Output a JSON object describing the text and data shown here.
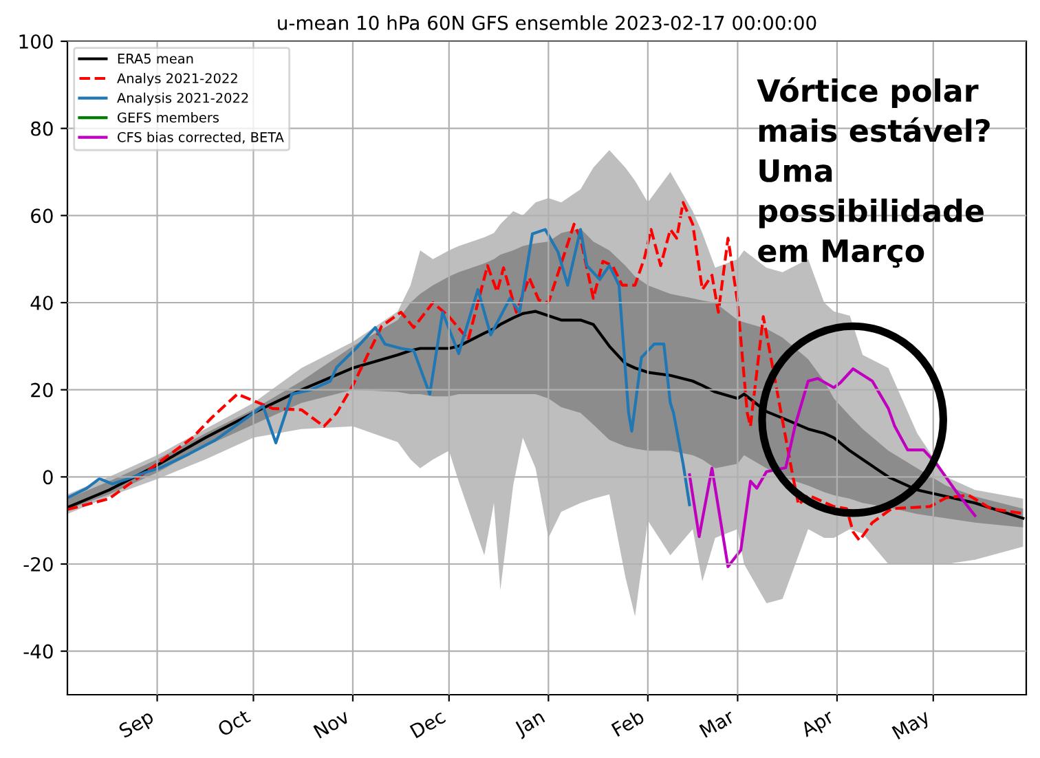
{
  "chart_data": {
    "type": "line",
    "title": "u-mean 10 hPa 60N GFS ensemble 2023-02-17 00:00:00",
    "xlim": [
      "2022-08-04",
      "2023-05-30"
    ],
    "xticks": [
      {
        "value": "2022-09-01",
        "label": "Sep"
      },
      {
        "value": "2022-10-01",
        "label": "Oct"
      },
      {
        "value": "2022-11-01",
        "label": "Nov"
      },
      {
        "value": "2022-12-01",
        "label": "Dec"
      },
      {
        "value": "2023-01-01",
        "label": "Jan"
      },
      {
        "value": "2023-02-01",
        "label": "Feb"
      },
      {
        "value": "2023-03-01",
        "label": "Mar"
      },
      {
        "value": "2023-04-01",
        "label": "Apr"
      },
      {
        "value": "2023-05-01",
        "label": "May"
      }
    ],
    "ylim": [
      -50,
      100
    ],
    "yticks": [
      -40,
      -20,
      0,
      20,
      40,
      60,
      80,
      100
    ],
    "grid": true,
    "legend": "top left",
    "annotations": [
      "Vórtice polar\nmais estável?\nUma\npossibilidade\nem Março"
    ],
    "series": [
      {
        "color": "#bebebe",
        "x": [
          "2022-08-04",
          "2022-08-17",
          "2022-09-01",
          "2022-09-16",
          "2022-10-01",
          "2022-10-16",
          "2022-11-01",
          "2022-11-15",
          "2022-11-19",
          "2022-11-22",
          "2022-11-26",
          "2022-12-01",
          "2022-12-04",
          "2022-12-12",
          "2022-12-15",
          "2022-12-17",
          "2022-12-21",
          "2022-12-24",
          "2022-12-28",
          "2023-01-01",
          "2023-01-05",
          "2023-01-11",
          "2023-01-15",
          "2023-01-20",
          "2023-01-25",
          "2023-01-28",
          "2023-02-01",
          "2023-02-08",
          "2023-02-15",
          "2023-02-18",
          "2023-02-22",
          "2023-03-01",
          "2023-03-03",
          "2023-03-10",
          "2023-03-15",
          "2023-03-23",
          "2023-03-28",
          "2023-03-31",
          "2023-04-05",
          "2023-04-09",
          "2023-04-17",
          "2023-04-26",
          "2023-05-05",
          "2023-05-14",
          "2023-05-29"
        ],
        "values": [
          null,
          null,
          null,
          null,
          null,
          null,
          null,
          null,
          null,
          null,
          null,
          null,
          null,
          null,
          null,
          null,
          null,
          null,
          null,
          null,
          null,
          null,
          null,
          null,
          null,
          null,
          null,
          null,
          null,
          null,
          null,
          null,
          null,
          null,
          null,
          null,
          null,
          null,
          null,
          null,
          null,
          null,
          null,
          null,
          null
        ],
        "upper": [
          -4,
          0,
          5,
          11,
          17,
          25,
          31,
          38,
          44,
          52,
          50,
          52,
          53,
          55,
          56,
          58,
          61,
          60,
          63,
          64,
          63,
          66,
          71,
          75,
          71,
          68,
          63,
          70,
          61,
          56,
          48,
          50,
          52,
          48,
          47,
          50,
          40,
          38,
          37,
          28,
          25,
          10,
          0,
          -3,
          -5
        ],
        "lower": [
          -8.5,
          -4.5,
          -0.5,
          4,
          9,
          11,
          11.6,
          8,
          4,
          2,
          4,
          6,
          -1,
          -18,
          -6,
          -26,
          -2,
          9,
          2,
          -14,
          -8,
          -6,
          -5,
          -4,
          -23,
          -32,
          -10,
          -18,
          -12,
          -24,
          -14,
          -12,
          -20,
          -29,
          -28,
          -12,
          -14,
          -14,
          -12,
          -13,
          -20,
          -20,
          -20,
          -19,
          -16
        ]
      },
      {
        "color": "#8c8c8c",
        "x": [
          "2022-08-04",
          "2022-08-17",
          "2022-09-01",
          "2022-09-16",
          "2022-10-01",
          "2022-10-16",
          "2022-11-01",
          "2022-11-15",
          "2022-11-19",
          "2022-11-22",
          "2022-11-26",
          "2022-12-01",
          "2022-12-04",
          "2022-12-12",
          "2022-12-15",
          "2022-12-17",
          "2022-12-21",
          "2022-12-24",
          "2022-12-28",
          "2023-01-01",
          "2023-01-05",
          "2023-01-11",
          "2023-01-15",
          "2023-01-20",
          "2023-01-25",
          "2023-01-28",
          "2023-02-01",
          "2023-02-08",
          "2023-02-15",
          "2023-02-18",
          "2023-02-22",
          "2023-03-01",
          "2023-03-03",
          "2023-03-10",
          "2023-03-15",
          "2023-03-23",
          "2023-03-28",
          "2023-03-31",
          "2023-04-05",
          "2023-04-09",
          "2023-04-17",
          "2023-04-26",
          "2023-05-05",
          "2023-05-14",
          "2023-05-29"
        ],
        "values": [
          null,
          null,
          null,
          null,
          null,
          null,
          null,
          null,
          null,
          null,
          null,
          null,
          null,
          null,
          null,
          null,
          null,
          null,
          null,
          null,
          null,
          null,
          null,
          null,
          null,
          null,
          null,
          null,
          null,
          null,
          null,
          null,
          null,
          null,
          null,
          null,
          null,
          null,
          null,
          null,
          null,
          null,
          null,
          null,
          null
        ],
        "upper": [
          -5,
          -1,
          4,
          10,
          15.5,
          22,
          30,
          36,
          40,
          42,
          44,
          46,
          47,
          49,
          50,
          51,
          52,
          53,
          53.6,
          54,
          56,
          57,
          54,
          52,
          48.5,
          46,
          44,
          42,
          41,
          40.5,
          40,
          36,
          35.5,
          34,
          32,
          27,
          22,
          18,
          14,
          11,
          6,
          2,
          -2,
          -4.5,
          -7.3
        ],
        "lower": [
          -7.5,
          -4,
          1,
          7,
          12,
          17,
          20,
          19.5,
          19,
          19,
          18.5,
          18.5,
          19,
          19,
          19,
          19,
          19,
          19,
          19,
          18,
          16,
          14.7,
          12,
          8.5,
          7,
          6.5,
          6,
          6,
          5,
          4,
          2,
          3,
          5,
          2,
          0,
          -2,
          -3.5,
          -4.2,
          -5,
          -6,
          -7,
          -8.5,
          -9.5,
          -10.5,
          -11.6
        ]
      },
      {
        "name": "ERA5 mean",
        "color": "#000000",
        "x": [
          "2022-08-04",
          "2022-08-17",
          "2022-09-01",
          "2022-09-16",
          "2022-10-01",
          "2022-10-16",
          "2022-11-01",
          "2022-11-15",
          "2022-11-19",
          "2022-11-22",
          "2022-11-26",
          "2022-12-01",
          "2022-12-04",
          "2022-12-12",
          "2022-12-15",
          "2022-12-17",
          "2022-12-21",
          "2022-12-24",
          "2022-12-28",
          "2023-01-01",
          "2023-01-05",
          "2023-01-11",
          "2023-01-15",
          "2023-01-20",
          "2023-01-25",
          "2023-01-28",
          "2023-02-01",
          "2023-02-08",
          "2023-02-15",
          "2023-02-18",
          "2023-02-22",
          "2023-03-01",
          "2023-03-03",
          "2023-03-10",
          "2023-03-15",
          "2023-03-23",
          "2023-03-28",
          "2023-03-31",
          "2023-04-05",
          "2023-04-09",
          "2023-04-17",
          "2023-04-26",
          "2023-05-05",
          "2023-05-14",
          "2023-05-29"
        ],
        "values": [
          -7,
          -3,
          2.7,
          9,
          14.7,
          20,
          25,
          28,
          29,
          29.5,
          29.5,
          29.5,
          30,
          33,
          34,
          35,
          36.5,
          37.5,
          38,
          37,
          36,
          36,
          35,
          30,
          26,
          25,
          24,
          23.3,
          22,
          21,
          19.5,
          18,
          19,
          15,
          13.5,
          11,
          10,
          9,
          6,
          4,
          0,
          -3,
          -4.5,
          -6,
          -9.5
        ]
      },
      {
        "name": "Analys 2021-2022",
        "color": "#ff0000",
        "line_style": "dashed",
        "x": [
          "2022-08-04",
          "2022-08-17",
          "2022-09-01",
          "2022-09-12",
          "2022-09-18",
          "2022-09-26",
          "2022-10-07",
          "2022-10-16",
          "2022-10-23",
          "2022-10-27",
          "2022-11-01",
          "2022-11-10",
          "2022-11-16",
          "2022-11-20",
          "2022-11-26",
          "2022-12-01",
          "2022-12-07",
          "2022-12-13",
          "2022-12-16",
          "2022-12-18",
          "2022-12-22",
          "2022-12-26",
          "2022-12-29",
          "2023-01-01",
          "2023-01-09",
          "2023-01-11",
          "2023-01-15",
          "2023-01-18",
          "2023-01-21",
          "2023-01-24",
          "2023-01-28",
          "2023-01-31",
          "2023-02-02",
          "2023-02-05",
          "2023-02-08",
          "2023-02-10",
          "2023-02-12",
          "2023-02-15",
          "2023-02-18",
          "2023-02-21",
          "2023-02-23",
          "2023-02-26",
          "2023-03-01",
          "2023-03-04",
          "2023-03-05",
          "2023-03-09",
          "2023-03-18",
          "2023-03-20",
          "2023-03-23",
          "2023-03-31",
          "2023-04-04",
          "2023-04-06",
          "2023-04-08",
          "2023-04-12",
          "2023-04-18",
          "2023-04-30",
          "2023-05-05",
          "2023-05-12",
          "2023-05-19",
          "2023-05-29"
        ],
        "values": [
          -7.5,
          -5,
          3,
          9,
          13.6,
          19,
          15.7,
          15.4,
          11.6,
          14.7,
          21,
          34.6,
          37.8,
          34.3,
          40,
          36.8,
          31.5,
          48.5,
          42.5,
          48,
          37.8,
          45.7,
          40.6,
          40,
          58,
          54.8,
          41,
          49.5,
          48.5,
          44,
          44,
          50.4,
          56.8,
          48.5,
          56.8,
          54.8,
          63,
          58,
          43,
          46.3,
          37.8,
          54.8,
          40,
          14.7,
          11.6,
          36.8,
          1,
          -6.4,
          -4.2,
          -6.8,
          -7.3,
          -12.6,
          -14.6,
          -10.5,
          -7.3,
          -6.8,
          -4.8,
          -4.2,
          -7.3,
          -8.4
        ]
      },
      {
        "name": "Analysis 2021-2022",
        "color": "#1f77b4",
        "x": [
          "2022-08-04",
          "2022-08-10",
          "2022-08-14",
          "2022-08-18",
          "2022-08-23",
          "2022-08-29",
          "2022-09-02",
          "2022-09-11",
          "2022-09-19",
          "2022-09-29",
          "2022-10-04",
          "2022-10-08",
          "2022-10-13",
          "2022-10-19",
          "2022-10-25",
          "2022-10-27",
          "2022-11-02",
          "2022-11-08",
          "2022-11-11",
          "2022-11-16",
          "2022-11-20",
          "2022-11-25",
          "2022-11-29",
          "2022-12-04",
          "2022-12-10",
          "2022-12-14",
          "2022-12-20",
          "2022-12-23",
          "2022-12-27",
          "2022-12-31",
          "2023-01-04",
          "2023-01-07",
          "2023-01-11",
          "2023-01-13",
          "2023-01-17",
          "2023-01-20",
          "2023-01-23",
          "2023-01-26",
          "2023-01-27",
          "2023-01-30",
          "2023-02-03",
          "2023-02-06",
          "2023-02-08",
          "2023-02-09",
          "2023-02-12",
          "2023-02-14"
        ],
        "values": [
          -4.8,
          -2.6,
          -0.4,
          -1.6,
          -0.4,
          1.2,
          2.1,
          5.3,
          8.4,
          13.6,
          16.3,
          7.8,
          19,
          20,
          22,
          25.2,
          29.5,
          34.3,
          30.5,
          29.5,
          29,
          19,
          37.8,
          28.3,
          43,
          32.6,
          41,
          37.8,
          55.8,
          56.8,
          51.6,
          44,
          56.8,
          48.5,
          45.3,
          48.5,
          44,
          14.7,
          10.5,
          27.4,
          30.5,
          30.5,
          17,
          14.7,
          3,
          -6.4
        ]
      },
      {
        "name": "GEFS members",
        "color": "#008000"
      },
      {
        "name": "CFS bias corrected, BETA",
        "color": "#bf00bf",
        "x": [
          "2023-02-14",
          "2023-02-17",
          "2023-02-21",
          "2023-02-26",
          "2023-03-02",
          "2023-03-05",
          "2023-03-07",
          "2023-03-10",
          "2023-03-16",
          "2023-03-19",
          "2023-03-23",
          "2023-03-26",
          "2023-03-31",
          "2023-04-02",
          "2023-04-06",
          "2023-04-12",
          "2023-04-17",
          "2023-04-19",
          "2023-04-23",
          "2023-04-28",
          "2023-05-02",
          "2023-05-08",
          "2023-05-14"
        ],
        "values": [
          0.5,
          -13.7,
          2,
          -20.6,
          -16.8,
          -1,
          -2.6,
          1.2,
          2.1,
          12,
          22,
          22.6,
          20.5,
          21.6,
          24.8,
          22,
          15.7,
          11.6,
          6.2,
          6.2,
          3,
          -3.2,
          -8.9
        ]
      }
    ]
  }
}
